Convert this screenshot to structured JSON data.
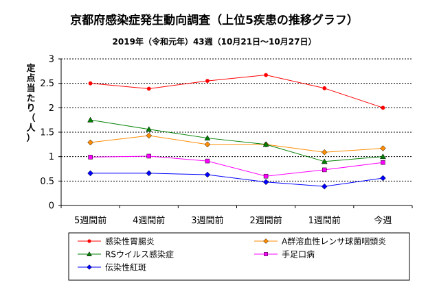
{
  "chart_data": {
    "type": "line",
    "title": "京都府感染症発生動向調査（上位5疾患の推移グラフ）",
    "subtitle": "2019年（令和元年）43週（10月21日～10月27日）",
    "ylabel_chars": [
      "定",
      "点",
      "当",
      "た",
      "り",
      "（",
      "人",
      "）"
    ],
    "categories": [
      "5週間前",
      "4週間前",
      "3週間前",
      "2週間前",
      "1週間前",
      "今週"
    ],
    "ylim": [
      0,
      3
    ],
    "yticks": [
      "0",
      "0.5",
      "1",
      "1.5",
      "2",
      "2.5",
      "3"
    ],
    "grid": true,
    "legend_position": "bottom",
    "series": [
      {
        "name": "感染性胃腸炎",
        "color": "#ff0000",
        "marker": "circle",
        "values": [
          2.5,
          2.39,
          2.55,
          2.67,
          2.4,
          2.0
        ]
      },
      {
        "name": "A群溶血性レンサ球菌咽頭炎",
        "color": "#ff8c00",
        "marker": "diamond",
        "values": [
          1.29,
          1.43,
          1.25,
          1.25,
          1.09,
          1.17
        ]
      },
      {
        "name": "RSウイルス感染症",
        "color": "#008000",
        "marker": "triangle",
        "values": [
          1.75,
          1.56,
          1.38,
          1.25,
          0.9,
          1.0
        ]
      },
      {
        "name": "手足口病",
        "color": "#ff00ff",
        "marker": "square",
        "values": [
          0.99,
          1.01,
          0.91,
          0.6,
          0.73,
          0.88
        ]
      },
      {
        "name": "伝染性紅斑",
        "color": "#0000ff",
        "marker": "diamond",
        "values": [
          0.66,
          0.66,
          0.63,
          0.48,
          0.39,
          0.56
        ]
      }
    ]
  }
}
